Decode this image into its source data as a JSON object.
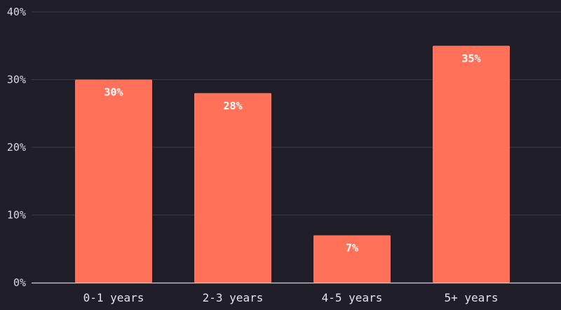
{
  "chart_data": {
    "type": "bar",
    "categories": [
      "0-1 years",
      "2-3 years",
      "4-5 years",
      "5+ years"
    ],
    "values": [
      30,
      28,
      7,
      35
    ],
    "value_labels": [
      "30%",
      "28%",
      "7%",
      "35%"
    ],
    "ylim": [
      0,
      40
    ],
    "yticks": [
      0,
      10,
      20,
      30,
      40
    ],
    "ytick_labels": [
      "0%",
      "10%",
      "20%",
      "30%",
      "40%"
    ],
    "title": "",
    "xlabel": "",
    "ylabel": "",
    "grid": true,
    "legend": "none",
    "colors": {
      "background": "#201f29",
      "bar": "#ff7159",
      "grid": "#3a3a46",
      "axis": "#cfcfd6"
    }
  }
}
